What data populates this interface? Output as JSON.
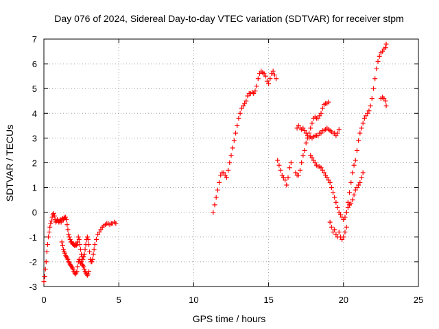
{
  "chart_data": {
    "type": "scatter",
    "title": "Day 076 of 2024, Sidereal Day-to-day VTEC variation (SDTVAR) for receiver stpm",
    "xlabel": "GPS time / hours",
    "ylabel": "SDTVAR / TECUs",
    "xlim": [
      0,
      25
    ],
    "ylim": [
      -3,
      7
    ],
    "xticks": [
      "0",
      "5",
      "10",
      "15",
      "20",
      "25"
    ],
    "yticks": [
      "-3",
      "-2",
      "-1",
      "0",
      "1",
      "2",
      "3",
      "4",
      "5",
      "6",
      "7"
    ],
    "grid": true,
    "marker": "+",
    "colors": {
      "series": "#ff0000",
      "grid": "#a0a0a0",
      "axis": "#000000"
    },
    "segments": [
      [
        [
          0.0,
          -2.8
        ],
        [
          0.05,
          -2.6
        ],
        [
          0.1,
          -2.3
        ],
        [
          0.15,
          -2.0
        ],
        [
          0.2,
          -1.6
        ],
        [
          0.25,
          -1.3
        ],
        [
          0.3,
          -1.0
        ],
        [
          0.35,
          -0.8
        ],
        [
          0.4,
          -0.6
        ],
        [
          0.45,
          -0.45
        ],
        [
          0.5,
          -0.35
        ],
        [
          0.55,
          -0.2
        ],
        [
          0.6,
          -0.1
        ],
        [
          0.65,
          -0.05
        ],
        [
          0.7,
          -0.15
        ],
        [
          0.75,
          -0.3
        ],
        [
          0.8,
          -0.4
        ],
        [
          0.85,
          -0.35
        ],
        [
          0.9,
          -0.3
        ],
        [
          0.95,
          -0.35
        ],
        [
          1.0,
          -0.4
        ],
        [
          1.05,
          -0.35
        ],
        [
          1.1,
          -0.3
        ],
        [
          1.15,
          -0.4
        ],
        [
          1.2,
          -0.3
        ],
        [
          1.25,
          -0.25
        ],
        [
          1.3,
          -0.3
        ],
        [
          1.35,
          -0.2
        ],
        [
          1.4,
          -0.25
        ],
        [
          1.45,
          -0.2
        ],
        [
          1.5,
          -0.3
        ],
        [
          1.55,
          -0.5
        ],
        [
          1.6,
          -0.7
        ],
        [
          1.65,
          -0.9
        ],
        [
          1.7,
          -1.0
        ],
        [
          1.75,
          -1.1
        ],
        [
          1.8,
          -1.2
        ],
        [
          1.85,
          -1.2
        ],
        [
          1.9,
          -1.25
        ],
        [
          1.95,
          -1.3
        ],
        [
          2.0,
          -1.3
        ],
        [
          2.05,
          -1.35
        ],
        [
          2.1,
          -1.3
        ],
        [
          2.15,
          -1.35
        ],
        [
          2.2,
          -1.3
        ],
        [
          2.25,
          -1.2
        ],
        [
          2.3,
          -1.0
        ],
        [
          2.35,
          -1.1
        ],
        [
          2.4,
          -1.3
        ],
        [
          2.45,
          -1.5
        ],
        [
          2.5,
          -1.7
        ],
        [
          2.55,
          -1.8
        ],
        [
          2.6,
          -1.9
        ],
        [
          2.65,
          -1.8
        ],
        [
          2.7,
          -1.7
        ],
        [
          2.75,
          -1.5
        ],
        [
          2.8,
          -1.3
        ],
        [
          2.85,
          -1.1
        ],
        [
          2.9,
          -1.0
        ],
        [
          2.95,
          -1.1
        ],
        [
          3.0,
          -1.3
        ],
        [
          3.05,
          -1.6
        ],
        [
          3.1,
          -1.9
        ],
        [
          3.15,
          -2.0
        ],
        [
          3.2,
          -2.0
        ],
        [
          3.25,
          -1.9
        ],
        [
          3.3,
          -1.7
        ],
        [
          3.35,
          -1.5
        ],
        [
          3.4,
          -1.3
        ],
        [
          3.5,
          -1.1
        ],
        [
          3.6,
          -0.9
        ],
        [
          3.7,
          -0.8
        ],
        [
          3.8,
          -0.7
        ],
        [
          3.9,
          -0.6
        ],
        [
          4.0,
          -0.55
        ],
        [
          4.1,
          -0.5
        ],
        [
          4.2,
          -0.45
        ],
        [
          4.3,
          -0.45
        ],
        [
          4.4,
          -0.5
        ],
        [
          4.5,
          -0.45
        ],
        [
          4.6,
          -0.45
        ],
        [
          4.7,
          -0.4
        ],
        [
          4.8,
          -0.45
        ]
      ],
      [
        [
          1.2,
          -1.2
        ],
        [
          1.25,
          -1.35
        ],
        [
          1.3,
          -1.5
        ],
        [
          1.35,
          -1.6
        ],
        [
          1.4,
          -1.65
        ],
        [
          1.45,
          -1.75
        ],
        [
          1.5,
          -1.8
        ],
        [
          1.55,
          -1.85
        ],
        [
          1.6,
          -1.9
        ],
        [
          1.65,
          -2.0
        ],
        [
          1.7,
          -2.05
        ],
        [
          1.75,
          -2.1
        ],
        [
          1.8,
          -2.15
        ],
        [
          1.85,
          -2.2
        ],
        [
          1.9,
          -2.25
        ],
        [
          1.95,
          -2.3
        ],
        [
          2.0,
          -2.4
        ],
        [
          2.05,
          -2.45
        ],
        [
          2.1,
          -2.5
        ],
        [
          2.15,
          -2.45
        ],
        [
          2.2,
          -2.4
        ],
        [
          2.25,
          -2.2
        ],
        [
          2.3,
          -2.0
        ],
        [
          2.35,
          -1.9
        ],
        [
          2.4,
          -2.0
        ],
        [
          2.45,
          -2.05
        ],
        [
          2.5,
          -2.0
        ],
        [
          2.55,
          -2.1
        ],
        [
          2.6,
          -2.15
        ],
        [
          2.65,
          -2.2
        ],
        [
          2.7,
          -2.3
        ],
        [
          2.75,
          -2.4
        ],
        [
          2.8,
          -2.45
        ],
        [
          2.85,
          -2.5
        ],
        [
          2.9,
          -2.55
        ],
        [
          2.95,
          -2.5
        ],
        [
          3.0,
          -2.4
        ]
      ],
      [
        [
          11.3,
          0.0
        ],
        [
          11.4,
          0.3
        ],
        [
          11.5,
          0.6
        ],
        [
          11.6,
          0.9
        ],
        [
          11.7,
          1.2
        ],
        [
          11.8,
          1.5
        ],
        [
          11.9,
          1.6
        ],
        [
          12.0,
          1.6
        ],
        [
          12.1,
          1.5
        ],
        [
          12.2,
          1.4
        ],
        [
          12.3,
          1.7
        ],
        [
          12.4,
          2.0
        ],
        [
          12.5,
          2.3
        ],
        [
          12.6,
          2.6
        ],
        [
          12.7,
          2.9
        ],
        [
          12.8,
          3.2
        ],
        [
          12.9,
          3.5
        ],
        [
          13.0,
          3.8
        ],
        [
          13.1,
          4.0
        ],
        [
          13.2,
          4.2
        ],
        [
          13.3,
          4.3
        ],
        [
          13.4,
          4.4
        ],
        [
          13.5,
          4.5
        ],
        [
          13.6,
          4.7
        ],
        [
          13.7,
          4.8
        ],
        [
          13.8,
          4.8
        ],
        [
          13.9,
          4.85
        ],
        [
          14.0,
          4.8
        ],
        [
          14.1,
          4.9
        ],
        [
          14.2,
          5.1
        ],
        [
          14.3,
          5.4
        ],
        [
          14.4,
          5.6
        ],
        [
          14.5,
          5.7
        ],
        [
          14.6,
          5.65
        ],
        [
          14.7,
          5.6
        ],
        [
          14.8,
          5.5
        ],
        [
          14.9,
          5.3
        ],
        [
          15.0,
          5.2
        ],
        [
          15.1,
          5.4
        ],
        [
          15.2,
          5.6
        ],
        [
          15.3,
          5.7
        ],
        [
          15.4,
          5.55
        ],
        [
          15.5,
          5.4
        ]
      ],
      [
        [
          15.6,
          2.1
        ],
        [
          15.7,
          1.9
        ],
        [
          15.8,
          1.7
        ],
        [
          15.9,
          1.5
        ],
        [
          16.0,
          1.4
        ],
        [
          16.1,
          1.3
        ],
        [
          16.2,
          1.1
        ],
        [
          16.3,
          1.4
        ],
        [
          16.4,
          1.8
        ],
        [
          16.5,
          2.0
        ]
      ],
      [
        [
          16.8,
          1.6
        ],
        [
          16.9,
          1.5
        ],
        [
          17.0,
          1.5
        ],
        [
          17.1,
          1.7
        ],
        [
          17.2,
          2.0
        ],
        [
          17.3,
          2.3
        ],
        [
          17.4,
          2.5
        ],
        [
          17.5,
          2.8
        ],
        [
          17.6,
          3.0
        ],
        [
          17.7,
          3.2
        ],
        [
          17.8,
          3.4
        ],
        [
          17.9,
          3.6
        ],
        [
          18.0,
          3.8
        ],
        [
          18.1,
          3.85
        ],
        [
          18.2,
          3.8
        ],
        [
          18.3,
          3.8
        ],
        [
          18.4,
          3.9
        ],
        [
          18.5,
          4.0
        ],
        [
          18.6,
          4.2
        ],
        [
          18.7,
          4.35
        ],
        [
          18.8,
          4.4
        ],
        [
          18.9,
          4.4
        ],
        [
          19.0,
          4.45
        ]
      ],
      [
        [
          16.9,
          3.4
        ],
        [
          17.0,
          3.5
        ],
        [
          17.1,
          3.4
        ],
        [
          17.2,
          3.35
        ],
        [
          17.3,
          3.4
        ],
        [
          17.4,
          3.3
        ],
        [
          17.5,
          3.2
        ],
        [
          17.6,
          3.1
        ],
        [
          17.7,
          3.0
        ],
        [
          17.8,
          3.05
        ],
        [
          17.9,
          3.0
        ],
        [
          18.0,
          3.05
        ],
        [
          18.1,
          3.1
        ],
        [
          18.2,
          3.1
        ],
        [
          18.3,
          3.1
        ],
        [
          18.4,
          3.2
        ],
        [
          18.5,
          3.2
        ],
        [
          18.6,
          3.3
        ],
        [
          18.7,
          3.3
        ],
        [
          18.8,
          3.35
        ],
        [
          18.9,
          3.4
        ],
        [
          19.0,
          3.35
        ],
        [
          19.1,
          3.3
        ],
        [
          19.2,
          3.25
        ],
        [
          19.3,
          3.2
        ],
        [
          19.4,
          3.2
        ],
        [
          19.5,
          3.1
        ],
        [
          19.6,
          3.2
        ],
        [
          19.7,
          3.35
        ]
      ],
      [
        [
          17.8,
          2.3
        ],
        [
          17.9,
          2.2
        ],
        [
          18.0,
          2.1
        ],
        [
          18.1,
          2.0
        ],
        [
          18.2,
          1.9
        ],
        [
          18.3,
          1.85
        ],
        [
          18.4,
          1.85
        ],
        [
          18.5,
          1.8
        ],
        [
          18.6,
          1.7
        ],
        [
          18.7,
          1.6
        ],
        [
          18.8,
          1.5
        ],
        [
          18.9,
          1.4
        ],
        [
          19.0,
          1.3
        ],
        [
          19.1,
          1.2
        ],
        [
          19.2,
          1.0
        ],
        [
          19.3,
          0.8
        ],
        [
          19.4,
          0.6
        ],
        [
          19.5,
          0.4
        ],
        [
          19.6,
          0.2
        ],
        [
          19.7,
          0.0
        ],
        [
          19.8,
          -0.1
        ],
        [
          19.9,
          -0.2
        ],
        [
          20.0,
          -0.3
        ],
        [
          20.1,
          -0.2
        ],
        [
          20.2,
          0.0
        ],
        [
          20.3,
          0.2
        ],
        [
          20.4,
          0.3
        ],
        [
          20.5,
          0.35
        ],
        [
          20.6,
          0.5
        ],
        [
          20.7,
          0.7
        ],
        [
          20.8,
          0.9
        ],
        [
          20.9,
          1.0
        ],
        [
          21.0,
          1.1
        ],
        [
          21.1,
          1.2
        ],
        [
          21.2,
          1.4
        ],
        [
          21.3,
          1.6
        ]
      ],
      [
        [
          19.1,
          -0.4
        ],
        [
          19.2,
          -0.6
        ],
        [
          19.3,
          -0.8
        ],
        [
          19.4,
          -0.7
        ],
        [
          19.5,
          -0.9
        ],
        [
          19.6,
          -1.0
        ],
        [
          19.7,
          -0.8
        ],
        [
          19.8,
          -1.0
        ],
        [
          19.9,
          -1.1
        ],
        [
          20.0,
          -1.0
        ],
        [
          20.1,
          -0.8
        ],
        [
          20.2,
          -0.6
        ]
      ],
      [
        [
          20.2,
          0.0
        ],
        [
          20.3,
          0.4
        ],
        [
          20.4,
          0.8
        ],
        [
          20.5,
          1.2
        ],
        [
          20.6,
          1.6
        ],
        [
          20.7,
          1.9
        ],
        [
          20.8,
          2.1
        ],
        [
          20.9,
          2.5
        ],
        [
          21.0,
          2.9
        ],
        [
          21.1,
          3.2
        ],
        [
          21.2,
          3.4
        ],
        [
          21.3,
          3.6
        ],
        [
          21.4,
          3.8
        ],
        [
          21.5,
          3.9
        ],
        [
          21.6,
          4.0
        ],
        [
          21.7,
          4.1
        ],
        [
          21.8,
          4.3
        ],
        [
          21.9,
          4.6
        ],
        [
          22.0,
          5.0
        ],
        [
          22.1,
          5.4
        ],
        [
          22.2,
          5.8
        ],
        [
          22.3,
          6.1
        ],
        [
          22.4,
          6.3
        ],
        [
          22.5,
          6.45
        ],
        [
          22.6,
          6.5
        ],
        [
          22.7,
          6.6
        ],
        [
          22.8,
          6.65
        ],
        [
          22.85,
          6.8
        ]
      ],
      [
        [
          22.5,
          4.6
        ],
        [
          22.6,
          4.65
        ],
        [
          22.7,
          4.6
        ],
        [
          22.8,
          4.5
        ],
        [
          22.85,
          4.3
        ]
      ]
    ]
  }
}
